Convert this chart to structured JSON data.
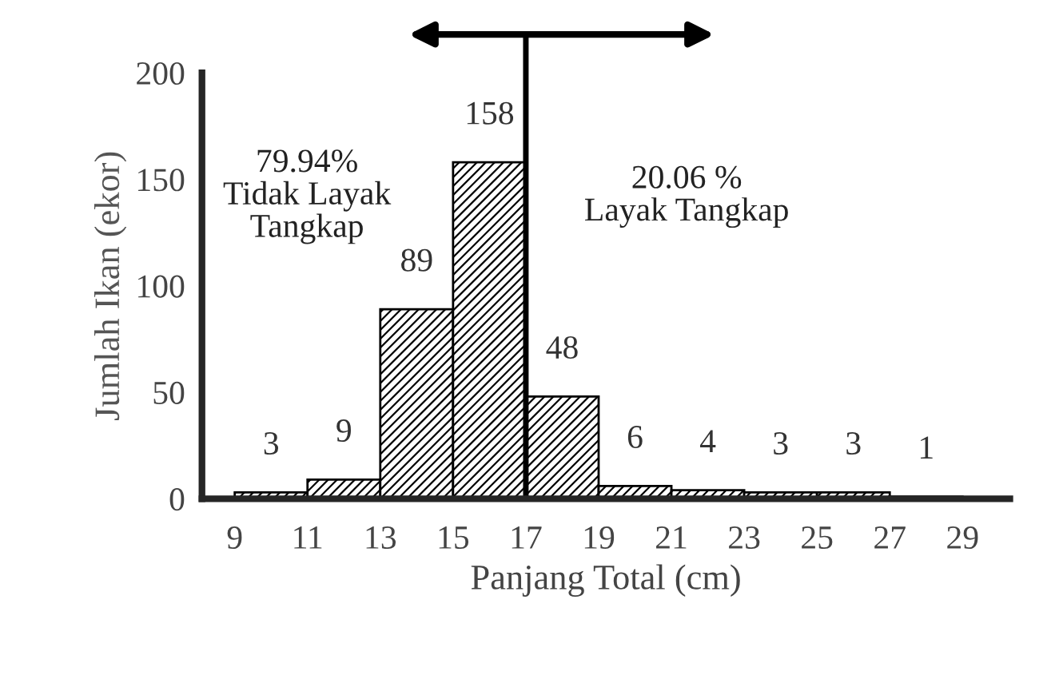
{
  "chart_data": {
    "type": "histogram",
    "xlabel": "Panjang Total (cm)",
    "ylabel": "Jumlah Ikan (ekor)",
    "bins": [
      9,
      11,
      13,
      15,
      17,
      19,
      21,
      23,
      25,
      27,
      29
    ],
    "values": [
      3,
      9,
      89,
      158,
      48,
      6,
      4,
      3,
      3,
      1
    ],
    "color": "#000000",
    "data_labels": true,
    "xlim": [
      8.1,
      30.3
    ],
    "xticks": [
      9,
      11,
      13,
      15,
      17,
      19,
      21,
      23,
      25,
      27,
      29
    ],
    "ylim": [
      0,
      200
    ],
    "yticks": [
      0,
      50,
      100,
      150,
      200
    ],
    "ref_lines": [
      {
        "axis": "x",
        "value": 17,
        "color": "#000000"
      }
    ],
    "annotations": [
      "79.94%\nTidak Layak\nTangkap",
      "20.06 %\nLayak Tangkap"
    ],
    "grid": false
  }
}
